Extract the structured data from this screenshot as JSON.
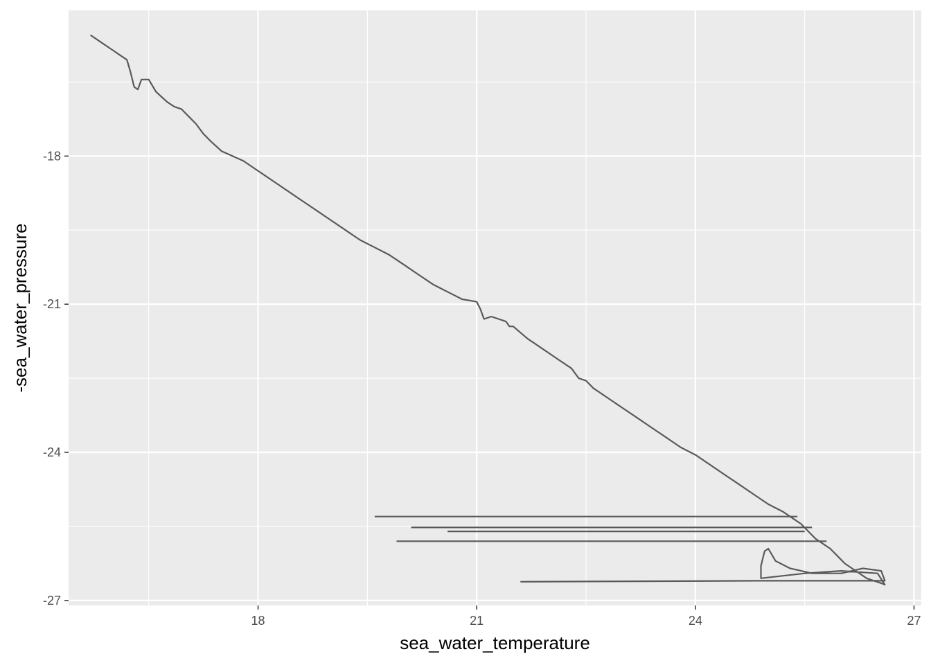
{
  "chart_data": {
    "type": "line",
    "title": "",
    "xlabel": "sea_water_temperature",
    "ylabel": "-sea_water_pressure",
    "xlim": [
      15.4,
      27.1
    ],
    "ylim": [
      -27.1,
      -15.05
    ],
    "x_ticks": [
      18,
      21,
      24,
      27
    ],
    "y_ticks": [
      -18,
      -21,
      -24,
      -27
    ],
    "x_tick_labels": [
      "18",
      "21",
      "24",
      "27"
    ],
    "y_tick_labels": [
      "-18",
      "-21",
      "-24",
      "-27"
    ],
    "grid": true,
    "legend": "none",
    "colors": {
      "panel": "#ebebeb",
      "grid": "#ffffff",
      "line": "#595959",
      "tick_text": "#4d4d4d",
      "tick_mark": "#333333"
    },
    "series": [
      {
        "x": [
          15.7,
          15.85,
          16.0,
          16.1,
          16.2,
          16.25,
          16.3,
          16.35,
          16.4,
          16.5,
          16.6,
          16.75,
          16.85,
          16.95,
          17.05,
          17.15,
          17.25,
          17.35,
          17.5,
          17.65,
          17.8,
          17.95,
          18.1,
          18.25,
          18.4,
          18.6,
          18.8,
          19.0,
          19.2,
          19.4,
          19.6,
          19.8,
          20.0,
          20.2,
          20.4,
          20.6,
          20.8,
          21.0,
          21.05,
          21.1,
          21.2,
          21.3,
          21.4,
          21.45,
          21.5,
          21.7,
          21.9,
          22.1,
          22.3,
          22.4,
          22.5,
          22.6,
          22.8,
          23.0,
          23.2,
          23.4,
          23.6,
          23.8,
          24.0,
          24.2,
          24.4,
          24.6,
          24.8,
          25.0,
          25.2,
          25.35,
          25.45,
          25.55,
          25.65,
          25.75,
          25.85,
          25.95,
          26.05,
          26.15,
          26.25,
          26.35,
          26.45,
          26.55,
          26.6,
          26.5,
          26.0,
          25.5,
          24.9,
          24.9,
          24.95,
          25.0,
          25.1,
          25.3,
          25.6,
          26.0,
          26.3,
          26.55,
          26.6,
          26.0,
          25.2,
          24.9,
          21.6
        ],
        "y": [
          -15.55,
          -15.7,
          -15.85,
          -15.95,
          -16.05,
          -16.3,
          -16.6,
          -16.65,
          -16.45,
          -16.45,
          -16.7,
          -16.9,
          -17.0,
          -17.05,
          -17.2,
          -17.35,
          -17.55,
          -17.7,
          -17.9,
          -18.0,
          -18.1,
          -18.25,
          -18.4,
          -18.55,
          -18.7,
          -18.9,
          -19.1,
          -19.3,
          -19.5,
          -19.7,
          -19.85,
          -20.0,
          -20.2,
          -20.4,
          -20.6,
          -20.75,
          -20.9,
          -20.95,
          -21.1,
          -21.3,
          -21.25,
          -21.3,
          -21.35,
          -21.45,
          -21.45,
          -21.7,
          -21.9,
          -22.1,
          -22.3,
          -22.5,
          -22.55,
          -22.7,
          -22.9,
          -23.1,
          -23.3,
          -23.5,
          -23.7,
          -23.9,
          -24.05,
          -24.25,
          -24.45,
          -24.65,
          -24.85,
          -25.05,
          -25.2,
          -25.35,
          -25.45,
          -25.6,
          -25.75,
          -25.85,
          -25.95,
          -26.1,
          -26.25,
          -26.35,
          -26.45,
          -26.55,
          -26.6,
          -26.65,
          -26.68,
          -26.45,
          -26.4,
          -26.45,
          -26.55,
          -26.3,
          -26.0,
          -25.95,
          -26.2,
          -26.35,
          -26.45,
          -26.45,
          -26.35,
          -26.4,
          -26.6,
          -26.6,
          -26.6,
          -26.6,
          -26.62
        ]
      },
      {
        "x": [
          19.6,
          25.4
        ],
        "y": [
          -25.3,
          -25.3
        ]
      },
      {
        "x": [
          20.1,
          25.6
        ],
        "y": [
          -25.52,
          -25.52
        ]
      },
      {
        "x": [
          20.6,
          25.5
        ],
        "y": [
          -25.6,
          -25.6
        ]
      },
      {
        "x": [
          19.9,
          25.8
        ],
        "y": [
          -25.8,
          -25.8
        ]
      }
    ]
  }
}
